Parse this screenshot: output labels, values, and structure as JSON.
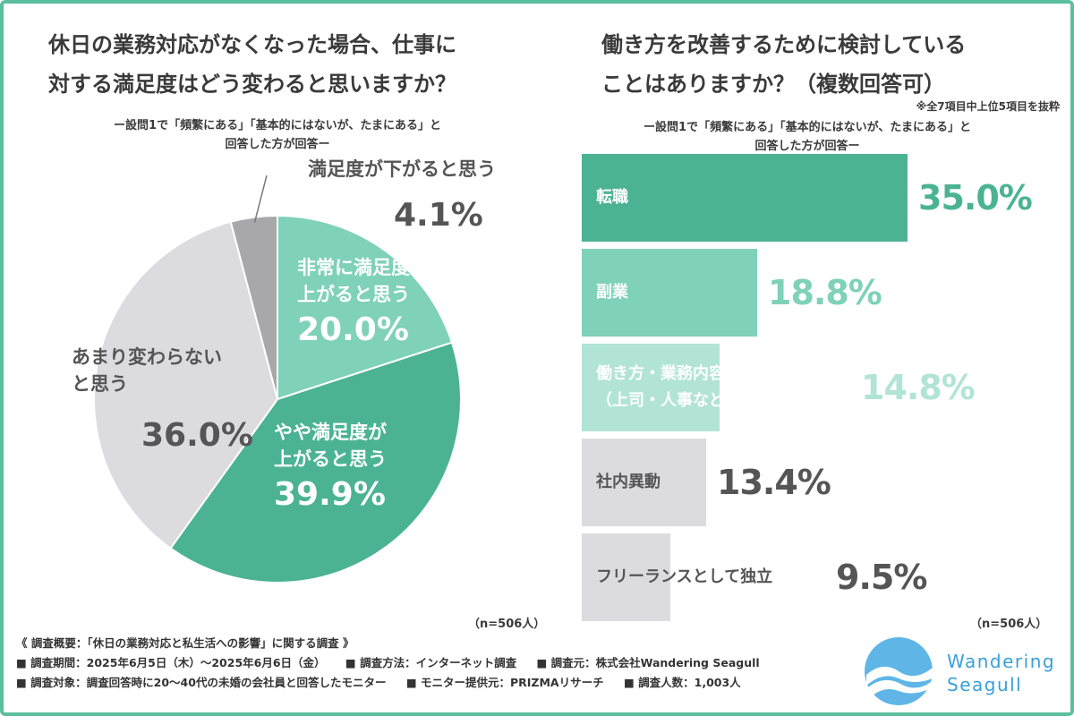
{
  "left": {
    "title_line1": "休日の業務対応がなくなった場合、仕事に",
    "title_line2": "対する満足度はどう変わると思いますか？",
    "note_line1": "ー設問1で「頻繁にある」「基本的にはないが、たまにある」と",
    "note_line2": "回答した方が回答ー",
    "n": "（n=506人）"
  },
  "right": {
    "title_line1": "働き方を改善するために検討している",
    "title_line2": "ことはありますか？（複数回答可）",
    "aside": "※全7項目中上位5項目を抜粋",
    "note_line1": "ー設問1で「頻繁にある」「基本的にはないが、たまにある」と",
    "note_line2": "回答した方が回答ー",
    "n": "（n=506人）"
  },
  "chart_data": [
    {
      "type": "pie",
      "start": "12 o'clock, clockwise",
      "slices": [
        {
          "label_lines": [
            "非常に満足度が",
            "上がると思う"
          ],
          "value": 20.0,
          "display": "20.0%",
          "color": "#7fd1b9",
          "text_color": "#ffffff"
        },
        {
          "label_lines": [
            "やや満足度が",
            "上がると思う"
          ],
          "value": 39.9,
          "display": "39.9%",
          "color": "#4bb394",
          "text_color": "#ffffff"
        },
        {
          "label_lines": [
            "あまり変わらない",
            "と思う"
          ],
          "value": 36.0,
          "display": "36.0%",
          "color": "#dcdcdf",
          "text_color": "#555555"
        },
        {
          "label_lines": [
            "満足度が下がると思う"
          ],
          "value": 4.1,
          "display": "4.1%",
          "color": "#a8a8ab",
          "text_color": "#555555"
        }
      ]
    },
    {
      "type": "bar",
      "orientation": "horizontal",
      "categories": [
        "転職",
        "副業",
        "働き方・業務内容の相談（上司・人事など）",
        "社内異動",
        "フリーランスとして独立"
      ],
      "label_lines": [
        [
          "転職"
        ],
        [
          "副業"
        ],
        [
          "働き方・業務内容の相談",
          "（上司・人事など）"
        ],
        [
          "社内異動"
        ],
        [
          "フリーランスとして独立"
        ]
      ],
      "values": [
        35.0,
        18.8,
        14.8,
        13.4,
        9.5
      ],
      "display": [
        "35.0%",
        "18.8%",
        "14.8%",
        "13.4%",
        "9.5%"
      ],
      "bar_colors": [
        "#4bb394",
        "#7fd1b9",
        "#b2e4d5",
        "#dcdcdf",
        "#dcdcdf"
      ],
      "label_colors": [
        "#ffffff",
        "#ffffff",
        "#ffffff",
        "#555555",
        "#555555"
      ],
      "value_colors": [
        "#4bb394",
        "#7fd1b9",
        "#b2e4d5",
        "#555555",
        "#555555"
      ]
    }
  ],
  "footer": {
    "line1": "《 調査概要：「休日の業務対応と私生活への影響」に関する調査 》",
    "period": "■ 調査期間：2025年6月5日（木）〜2025年6月6日（金）",
    "method": "■ 調査方法：インターネット調査",
    "source": "■ 調査元：株式会社Wandering Seagull",
    "target": "■ 調査対象：調査回答時に20〜40代の未婚の会社員と回答したモニター",
    "provider": "■ モニター提供元：PRIZMAリサーチ",
    "count": "■ 調査人数：1,003人"
  },
  "logo": {
    "line1": "Wandering",
    "line2": "Seagull",
    "color": "#3aa0d8"
  }
}
